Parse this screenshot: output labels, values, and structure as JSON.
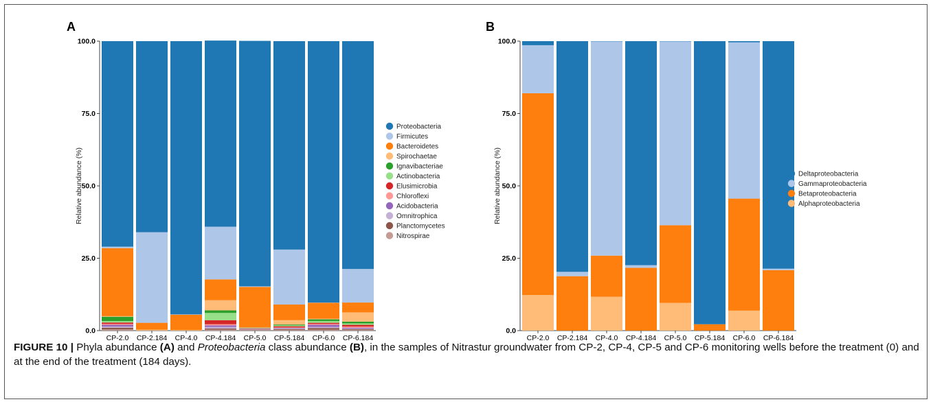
{
  "caption": {
    "figure_label": "FIGURE 10 |",
    "part1": " Phyla abundance ",
    "panel_a": "(A)",
    "part2": " and ",
    "taxon": "Proteobacteria",
    "part3": " class abundance ",
    "panel_b": "(B)",
    "part4": ", in the samples of Nitrastur groundwater from CP-2, CP-4, CP-5 and CP-6 monitoring wells before the treatment (0) and at the end of the treatment (184 days)."
  },
  "chart_data": [
    {
      "type": "bar",
      "stacked": true,
      "panel_label": "A",
      "ylabel": "Relative abundance (%)",
      "ylim": [
        0,
        100
      ],
      "yticks": [
        "0.0",
        "25.0",
        "50.0",
        "75.0",
        "100.0"
      ],
      "legend_position": "right",
      "categories": [
        "CP-2.0",
        "CP-2.184",
        "CP-4.0",
        "CP-4.184",
        "CP-5.0",
        "CP-5.184",
        "CP-6.0",
        "CP-6.184"
      ],
      "series": [
        {
          "name": "Nitrospirae",
          "color": "#c49c94",
          "values": [
            0.4,
            0,
            0,
            0.3,
            0.2,
            0.2,
            0.3,
            0.2
          ]
        },
        {
          "name": "Planctomycetes",
          "color": "#8c564b",
          "values": [
            0.6,
            0,
            0,
            0.4,
            0.2,
            0.3,
            0.6,
            0.3
          ]
        },
        {
          "name": "Omnitrophica",
          "color": "#c5b0d5",
          "values": [
            0.4,
            0,
            0,
            0.6,
            0.1,
            0.2,
            0.4,
            0.2
          ]
        },
        {
          "name": "Acidobacteria",
          "color": "#9467bd",
          "values": [
            0.6,
            0,
            0,
            0.5,
            0.1,
            0.2,
            0.7,
            0.3
          ]
        },
        {
          "name": "Chloroflexi",
          "color": "#ff9896",
          "values": [
            0.3,
            0,
            0,
            0.4,
            0.1,
            0.2,
            0.3,
            0.4
          ]
        },
        {
          "name": "Elusimicrobia",
          "color": "#d62728",
          "values": [
            0.5,
            0,
            0,
            1.4,
            0.1,
            0.4,
            0.4,
            0.6
          ]
        },
        {
          "name": "Actinobacteria",
          "color": "#98df8a",
          "values": [
            0.5,
            0,
            0,
            2.5,
            0.1,
            0.3,
            0.6,
            0.5
          ]
        },
        {
          "name": "Ignavibacteriae",
          "color": "#2ca02c",
          "values": [
            1.5,
            0,
            0,
            0.9,
            0.1,
            0.3,
            0.6,
            0.6
          ]
        },
        {
          "name": "Spirochaetae",
          "color": "#ffbb78",
          "values": [
            0.2,
            0.3,
            0.2,
            3.5,
            0.1,
            1.5,
            0.2,
            3.2
          ]
        },
        {
          "name": "Bacteroidetes",
          "color": "#ff7f0e",
          "values": [
            23.5,
            2.4,
            5.3,
            7.2,
            14.0,
            5.4,
            5.5,
            3.4
          ]
        },
        {
          "name": "Firmicutes",
          "color": "#aec7e8",
          "values": [
            0.5,
            31.3,
            0.1,
            18.2,
            0.2,
            19.0,
            0.1,
            11.6
          ]
        },
        {
          "name": "Proteobacteria",
          "color": "#1f77b4",
          "values": [
            71.0,
            66.0,
            94.4,
            64.3,
            84.8,
            72.0,
            90.3,
            78.7
          ]
        }
      ],
      "legend_order": [
        "Proteobacteria",
        "Firmicutes",
        "Bacteroidetes",
        "Spirochaetae",
        "Ignavibacteriae",
        "Actinobacteria",
        "Elusimicrobia",
        "Chloroflexi",
        "Acidobacteria",
        "Omnitrophica",
        "Planctomycetes",
        "Nitrospirae"
      ]
    },
    {
      "type": "bar",
      "stacked": true,
      "panel_label": "B",
      "ylabel": "Relative abundance (%)",
      "ylim": [
        0,
        100
      ],
      "yticks": [
        "0.0",
        "25.0",
        "50.0",
        "75.0",
        "100.0"
      ],
      "legend_position": "right",
      "categories": [
        "CP-2.0",
        "CP-2.184",
        "CP-4.0",
        "CP-4.184",
        "CP-5.0",
        "CP-5.184",
        "CP-6.0",
        "CP-6.184"
      ],
      "series": [
        {
          "name": "Alphaproteobacteria",
          "color": "#ffbb78",
          "values": [
            12.3,
            0,
            11.7,
            0,
            9.6,
            0,
            6.9,
            0
          ]
        },
        {
          "name": "Betaproteobacteria",
          "color": "#ff7f0e",
          "values": [
            69.7,
            18.8,
            14.2,
            21.7,
            26.8,
            2.2,
            38.7,
            20.9
          ]
        },
        {
          "name": "Gammaproteobacteria",
          "color": "#aec7e8",
          "values": [
            16.6,
            1.5,
            74.0,
            0.9,
            63.5,
            0,
            54.0,
            0.5
          ]
        },
        {
          "name": "Deltaproteobacteria",
          "color": "#1f77b4",
          "values": [
            1.4,
            79.7,
            0.1,
            77.4,
            0.1,
            97.8,
            0.4,
            78.6
          ]
        }
      ],
      "legend_order": [
        "Deltaproteobacteria",
        "Gammaproteobacteria",
        "Betaproteobacteria",
        "Alphaproteobacteria"
      ]
    }
  ]
}
